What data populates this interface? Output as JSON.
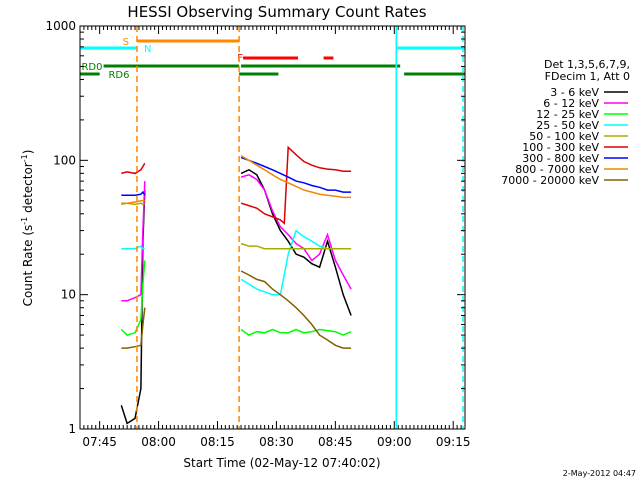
{
  "chart_data": {
    "type": "line",
    "title": "HESSI Observing Summary Count Rates",
    "xlabel": "Start Time (02-May-12 07:40:02)",
    "ylabel": "Count Rate (s",
    "ylabel_sup": "-1",
    "ylabel_mid": " detector",
    "ylabel_end": ")",
    "xlim_minutes": [
      0,
      98
    ],
    "x_ticks": [
      {
        "min": 5,
        "label": "07:45"
      },
      {
        "min": 20,
        "label": "08:00"
      },
      {
        "min": 35,
        "label": "08:15"
      },
      {
        "min": 50,
        "label": "08:30"
      },
      {
        "min": 65,
        "label": "08:45"
      },
      {
        "min": 80,
        "label": "09:00"
      },
      {
        "min": 95,
        "label": "09:15"
      }
    ],
    "y_scale": "log",
    "ylim": [
      1,
      1000
    ],
    "y_ticks": [
      {
        "value": 1,
        "label": "1"
      },
      {
        "value": 10,
        "label": "10"
      },
      {
        "value": 100,
        "label": "100"
      },
      {
        "value": 1000,
        "label": "1000"
      }
    ],
    "legend_header": [
      "Det 1,3,5,6,7,9,",
      "FDecim 1, Att 0"
    ],
    "legend_placement": "right",
    "series": [
      {
        "name": "3 - 6 keV",
        "color": "#000000",
        "x": [
          10.5,
          12,
          14,
          15.5,
          16,
          16.5,
          41,
          43,
          45,
          47,
          49,
          51,
          53,
          55,
          57,
          59,
          61,
          63,
          65,
          67,
          69
        ],
        "y": [
          1.5,
          1.1,
          1.2,
          2,
          25,
          60,
          80,
          85,
          78,
          60,
          40,
          30,
          25,
          20,
          19,
          17,
          16,
          25,
          16,
          10,
          7
        ]
      },
      {
        "name": "6 - 12 keV",
        "color": "#ff00ff",
        "x": [
          10.5,
          12,
          14,
          15.5,
          16,
          16.5,
          41,
          43,
          45,
          47,
          49,
          51,
          53,
          55,
          57,
          59,
          61,
          63,
          65,
          67,
          69
        ],
        "y": [
          9,
          9,
          9.5,
          10,
          30,
          70,
          75,
          78,
          72,
          60,
          42,
          32,
          28,
          24,
          22,
          18,
          20,
          28,
          18,
          14,
          11
        ]
      },
      {
        "name": "12 - 25 keV",
        "color": "#00ff00",
        "x": [
          10.5,
          12,
          14,
          15.5,
          16,
          16.5,
          41,
          43,
          45,
          47,
          49,
          51,
          53,
          55,
          57,
          59,
          61,
          63,
          65,
          67,
          69
        ],
        "y": [
          5.5,
          5,
          5.2,
          6.5,
          12,
          18,
          5.5,
          5,
          5.3,
          5.2,
          5.5,
          5.2,
          5.2,
          5.5,
          5.2,
          5.3,
          5.5,
          5.4,
          5.3,
          5,
          5.3
        ]
      },
      {
        "name": "25 - 50 keV",
        "color": "#00ffff",
        "x": [
          10.5,
          12,
          14,
          15.5,
          16,
          16.5,
          41,
          43,
          45,
          47,
          49,
          51,
          53,
          55,
          57,
          59,
          61,
          63,
          65,
          67,
          69
        ],
        "y": [
          22,
          22,
          22,
          23,
          22,
          22,
          13,
          12,
          11,
          10.5,
          10,
          10,
          20,
          30,
          27,
          25,
          23,
          22,
          22,
          22,
          22
        ]
      },
      {
        "name": "50 - 100 keV",
        "color": "#aaaa00",
        "x": [
          10.5,
          12,
          14,
          15.5,
          16,
          16.5,
          41,
          43,
          45,
          47,
          49,
          51,
          53,
          55,
          57,
          59,
          61,
          63,
          65,
          67,
          69
        ],
        "y": [
          47,
          48,
          47,
          48,
          47,
          48,
          24,
          23,
          23,
          22,
          22,
          22,
          22,
          22,
          22,
          22,
          22,
          22,
          22,
          22,
          22
        ]
      },
      {
        "name": "100 - 300 keV",
        "color": "#dd0000",
        "x": [
          10.5,
          12,
          14,
          15.5,
          16,
          16.5,
          41,
          43,
          45,
          47,
          49,
          51,
          52,
          53,
          55,
          57,
          59,
          61,
          63,
          65,
          67,
          69
        ],
        "y": [
          80,
          82,
          80,
          85,
          90,
          95,
          48,
          46,
          44,
          40,
          38,
          36,
          34,
          125,
          110,
          98,
          92,
          88,
          86,
          85,
          83,
          83
        ]
      },
      {
        "name": "300 - 800 keV",
        "color": "#0000ff",
        "x": [
          10.5,
          12,
          14,
          15.5,
          16,
          16.5,
          41,
          43,
          45,
          47,
          49,
          51,
          53,
          55,
          57,
          59,
          61,
          63,
          65,
          67,
          69
        ],
        "y": [
          55,
          55,
          55,
          56,
          58,
          55,
          105,
          100,
          95,
          90,
          85,
          80,
          75,
          70,
          68,
          65,
          63,
          60,
          60,
          58,
          58
        ]
      },
      {
        "name": "800 - 7000 keV",
        "color": "#ee8800",
        "x": [
          10.5,
          12,
          14,
          15.5,
          16,
          16.5,
          41,
          43,
          45,
          47,
          49,
          51,
          53,
          55,
          57,
          59,
          61,
          63,
          65,
          67,
          69
        ],
        "y": [
          48,
          48,
          49,
          50,
          50,
          50,
          108,
          100,
          92,
          85,
          78,
          72,
          68,
          64,
          60,
          58,
          56,
          55,
          54,
          53,
          53
        ]
      },
      {
        "name": "7000 - 20000 keV",
        "color": "#806000",
        "x": [
          10.5,
          12,
          14,
          15.5,
          16,
          16.5,
          41,
          43,
          45,
          47,
          49,
          51,
          53,
          55,
          57,
          59,
          61,
          63,
          65,
          67,
          69
        ],
        "y": [
          4,
          4,
          4.1,
          4.2,
          6,
          8,
          15,
          14,
          13,
          12.5,
          11,
          10,
          9,
          8,
          7,
          6,
          5,
          4.6,
          4.2,
          4,
          4
        ]
      }
    ],
    "state_bars": [
      {
        "label": "N",
        "color": "#00ffff",
        "segments": [
          [
            0,
            14.6
          ],
          [
            80.5,
            98
          ]
        ]
      },
      {
        "label": "S",
        "color": "#ff8800",
        "segments": [
          [
            14.6,
            40.5
          ]
        ]
      },
      {
        "label": "F",
        "color": "#ff0000",
        "segments": [
          [
            41.5,
            55.5
          ],
          [
            62,
            64.5
          ]
        ]
      },
      {
        "label": "RD0",
        "color": "#008000",
        "segments": [
          [
            6,
            40.5
          ],
          [
            41,
            81.5
          ]
        ]
      },
      {
        "label": "RD6",
        "color": "#008000",
        "segments": [
          [
            0,
            5
          ],
          [
            40.5,
            50.5
          ],
          [
            82.5,
            98
          ]
        ]
      }
    ],
    "verticals": [
      {
        "x": 14.5,
        "color": "#ff8800",
        "style": "dashed"
      },
      {
        "x": 40.5,
        "color": "#ff8800",
        "style": "dashed"
      },
      {
        "x": 80.5,
        "color": "#00ffff",
        "style": "solid"
      },
      {
        "x": 97.5,
        "color": "#00ffff",
        "style": "dashed"
      }
    ],
    "timestamp": "2-May-2012 04:47"
  }
}
